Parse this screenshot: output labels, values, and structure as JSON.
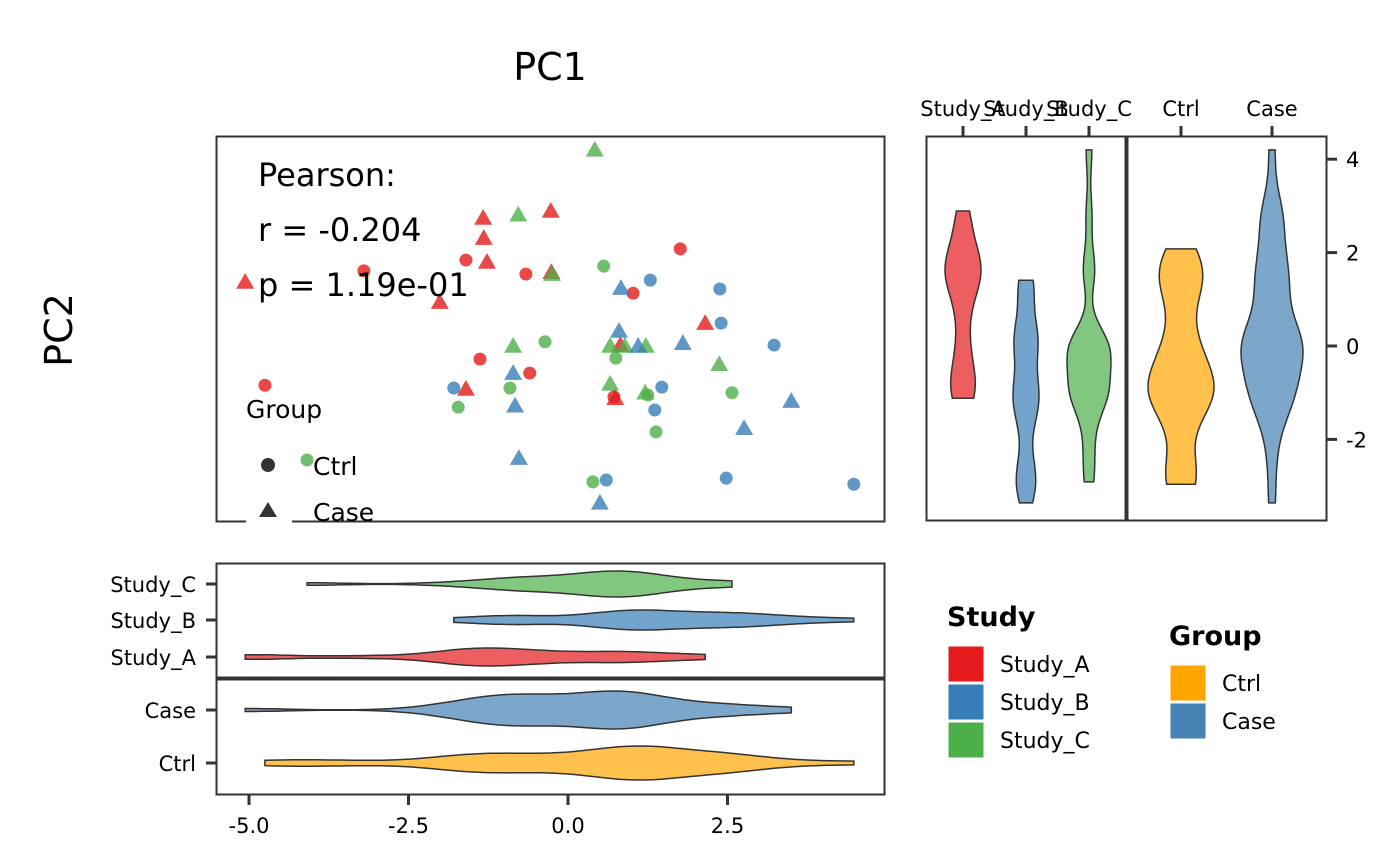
{
  "chart_data": {
    "type": "scatter",
    "title": "PC1",
    "xlabel": "PC1",
    "ylabel": "PC2",
    "xlim": [
      -5.5,
      5.0
    ],
    "ylim": [
      -3.7,
      4.5
    ],
    "x_ticks": [
      "-5.0",
      "-2.5",
      "0.0",
      "2.5"
    ],
    "x_tick_values": [
      -5.0,
      -2.5,
      0.0,
      2.5
    ],
    "y_ticks": [
      "4",
      "2",
      "0",
      "-2"
    ],
    "y_tick_values": [
      4,
      2,
      0,
      -2
    ],
    "grid": false,
    "annotation": {
      "line1": "Pearson:",
      "line2": "r = -0.204",
      "line3": "p = 1.19e-01"
    },
    "shape_legend": {
      "title": "Group",
      "placement": "bottom-left inside",
      "items": [
        {
          "label": "Ctrl",
          "shape": "circle"
        },
        {
          "label": "Case",
          "shape": "triangle"
        }
      ]
    },
    "study_legend": {
      "title": "Study",
      "placement": "bottom-right",
      "items": [
        {
          "label": "Study_A",
          "color": "#E41A1C"
        },
        {
          "label": "Study_B",
          "color": "#377EB8"
        },
        {
          "label": "Study_C",
          "color": "#4DAF4A"
        }
      ]
    },
    "group_legend": {
      "title": "Group",
      "placement": "bottom-right",
      "items": [
        {
          "label": "Ctrl",
          "color": "#FFA500"
        },
        {
          "label": "Case",
          "color": "#4682B4"
        }
      ]
    },
    "violin_colors": {
      "Study_A": "#E41A1C",
      "Study_B": "#377EB8",
      "Study_C": "#4DAF4A",
      "Ctrl": "#FFA500",
      "Case": "#4682B4"
    },
    "right_violin_categories": {
      "study": [
        "Study_A",
        "Study_B",
        "Study_C"
      ],
      "group": [
        "Ctrl",
        "Case"
      ]
    },
    "bottom_violin_categories": {
      "study": [
        "Study_C",
        "Study_B",
        "Study_A"
      ],
      "group": [
        "Case",
        "Ctrl"
      ]
    },
    "points": [
      {
        "x": -5.06,
        "y": 1.37,
        "study": "Study_A",
        "group": "Case"
      },
      {
        "x": -4.75,
        "y": -0.84,
        "study": "Study_A",
        "group": "Ctrl"
      },
      {
        "x": -3.2,
        "y": 1.61,
        "study": "Study_A",
        "group": "Ctrl"
      },
      {
        "x": -2.01,
        "y": 0.94,
        "study": "Study_A",
        "group": "Case"
      },
      {
        "x": -1.6,
        "y": 1.84,
        "study": "Study_A",
        "group": "Ctrl"
      },
      {
        "x": -1.33,
        "y": 2.74,
        "study": "Study_A",
        "group": "Case"
      },
      {
        "x": -1.32,
        "y": 2.31,
        "study": "Study_A",
        "group": "Case"
      },
      {
        "x": -1.27,
        "y": 1.8,
        "study": "Study_A",
        "group": "Case"
      },
      {
        "x": -1.38,
        "y": -0.28,
        "study": "Study_A",
        "group": "Ctrl"
      },
      {
        "x": -1.6,
        "y": -0.92,
        "study": "Study_A",
        "group": "Case"
      },
      {
        "x": -0.66,
        "y": 1.54,
        "study": "Study_A",
        "group": "Ctrl"
      },
      {
        "x": -0.6,
        "y": -0.58,
        "study": "Study_A",
        "group": "Ctrl"
      },
      {
        "x": -0.27,
        "y": 2.89,
        "study": "Study_A",
        "group": "Case"
      },
      {
        "x": -0.26,
        "y": 1.58,
        "study": "Study_A",
        "group": "Case"
      },
      {
        "x": 1.02,
        "y": 1.13,
        "study": "Study_A",
        "group": "Ctrl"
      },
      {
        "x": 1.76,
        "y": 2.08,
        "study": "Study_A",
        "group": "Ctrl"
      },
      {
        "x": 2.15,
        "y": 0.49,
        "study": "Study_A",
        "group": "Case"
      },
      {
        "x": 0.82,
        "y": 0.02,
        "study": "Study_A",
        "group": "Case"
      },
      {
        "x": 0.72,
        "y": -1.09,
        "study": "Study_A",
        "group": "Ctrl"
      },
      {
        "x": 0.74,
        "y": -1.12,
        "study": "Study_A",
        "group": "Case"
      },
      {
        "x": 0.42,
        "y": 4.2,
        "study": "Study_C",
        "group": "Case"
      },
      {
        "x": -0.78,
        "y": 2.81,
        "study": "Study_C",
        "group": "Case"
      },
      {
        "x": -0.25,
        "y": 1.54,
        "study": "Study_C",
        "group": "Case"
      },
      {
        "x": 0.56,
        "y": 1.71,
        "study": "Study_C",
        "group": "Ctrl"
      },
      {
        "x": -0.36,
        "y": 0.09,
        "study": "Study_C",
        "group": "Ctrl"
      },
      {
        "x": -0.86,
        "y": 0.0,
        "study": "Study_C",
        "group": "Case"
      },
      {
        "x": -0.91,
        "y": -0.9,
        "study": "Study_C",
        "group": "Ctrl"
      },
      {
        "x": -1.72,
        "y": -1.31,
        "study": "Study_C",
        "group": "Ctrl"
      },
      {
        "x": -4.09,
        "y": -2.44,
        "study": "Study_C",
        "group": "Ctrl"
      },
      {
        "x": 0.66,
        "y": 0.0,
        "study": "Study_C",
        "group": "Case"
      },
      {
        "x": 0.75,
        "y": -0.26,
        "study": "Study_C",
        "group": "Ctrl"
      },
      {
        "x": 0.89,
        "y": 0.0,
        "study": "Study_C",
        "group": "Case"
      },
      {
        "x": 1.22,
        "y": 0.0,
        "study": "Study_C",
        "group": "Case"
      },
      {
        "x": 0.66,
        "y": -0.81,
        "study": "Study_C",
        "group": "Case"
      },
      {
        "x": 1.21,
        "y": -1.0,
        "study": "Study_C",
        "group": "Case"
      },
      {
        "x": 1.25,
        "y": -1.05,
        "study": "Study_C",
        "group": "Ctrl"
      },
      {
        "x": 1.38,
        "y": -1.84,
        "study": "Study_C",
        "group": "Ctrl"
      },
      {
        "x": 2.37,
        "y": -0.39,
        "study": "Study_C",
        "group": "Case"
      },
      {
        "x": 2.57,
        "y": -1.0,
        "study": "Study_C",
        "group": "Ctrl"
      },
      {
        "x": 0.39,
        "y": -2.91,
        "study": "Study_C",
        "group": "Ctrl"
      },
      {
        "x": 0.83,
        "y": 1.24,
        "study": "Study_B",
        "group": "Case"
      },
      {
        "x": 1.29,
        "y": 1.41,
        "study": "Study_B",
        "group": "Ctrl"
      },
      {
        "x": 2.38,
        "y": 1.22,
        "study": "Study_B",
        "group": "Ctrl"
      },
      {
        "x": 2.4,
        "y": 0.49,
        "study": "Study_B",
        "group": "Ctrl"
      },
      {
        "x": 0.8,
        "y": 0.32,
        "study": "Study_B",
        "group": "Case"
      },
      {
        "x": 1.1,
        "y": 0.0,
        "study": "Study_B",
        "group": "Case"
      },
      {
        "x": 1.8,
        "y": 0.06,
        "study": "Study_B",
        "group": "Case"
      },
      {
        "x": 3.23,
        "y": 0.02,
        "study": "Study_B",
        "group": "Ctrl"
      },
      {
        "x": -0.86,
        "y": -0.58,
        "study": "Study_B",
        "group": "Case"
      },
      {
        "x": -1.79,
        "y": -0.9,
        "study": "Study_B",
        "group": "Ctrl"
      },
      {
        "x": -0.83,
        "y": -1.28,
        "study": "Study_B",
        "group": "Case"
      },
      {
        "x": 1.47,
        "y": -0.88,
        "study": "Study_B",
        "group": "Ctrl"
      },
      {
        "x": 1.36,
        "y": -1.37,
        "study": "Study_B",
        "group": "Ctrl"
      },
      {
        "x": 3.5,
        "y": -1.18,
        "study": "Study_B",
        "group": "Case"
      },
      {
        "x": 2.76,
        "y": -1.76,
        "study": "Study_B",
        "group": "Case"
      },
      {
        "x": -0.77,
        "y": -2.4,
        "study": "Study_B",
        "group": "Case"
      },
      {
        "x": 0.6,
        "y": -2.87,
        "study": "Study_B",
        "group": "Ctrl"
      },
      {
        "x": 2.48,
        "y": -2.83,
        "study": "Study_B",
        "group": "Ctrl"
      },
      {
        "x": 0.5,
        "y": -3.36,
        "study": "Study_B",
        "group": "Case"
      },
      {
        "x": 4.48,
        "y": -2.96,
        "study": "Study_B",
        "group": "Ctrl"
      }
    ]
  }
}
